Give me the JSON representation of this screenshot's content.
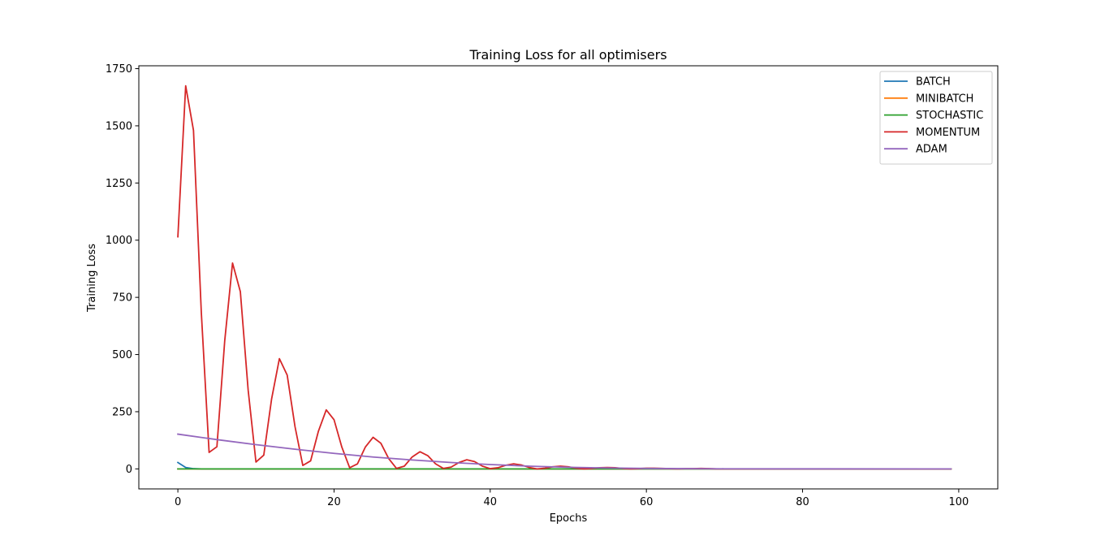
{
  "chart_data": {
    "type": "line",
    "title": "Training Loss for all optimisers",
    "xlabel": "Epochs",
    "ylabel": "Training Loss",
    "xlim": [
      -5,
      105
    ],
    "ylim": [
      -87.5,
      1762.5
    ],
    "xticks": [
      0,
      20,
      40,
      60,
      80,
      100
    ],
    "yticks": [
      0,
      250,
      500,
      750,
      1000,
      1250,
      1500,
      1750
    ],
    "grid": false,
    "legend_position": "top-right",
    "x_start": 0,
    "x_end": 99,
    "series": [
      {
        "name": "BATCH",
        "color": "#1f77b4",
        "points": [
          [
            0,
            28
          ],
          [
            1,
            6
          ],
          [
            2,
            1
          ],
          [
            3,
            0
          ],
          [
            99,
            0
          ]
        ]
      },
      {
        "name": "MINIBATCH",
        "color": "#ff7f0e",
        "points": [
          [
            0,
            0
          ],
          [
            99,
            0
          ]
        ]
      },
      {
        "name": "STOCHASTIC",
        "color": "#2ca02c",
        "points": [
          [
            0,
            0
          ],
          [
            99,
            0
          ]
        ]
      },
      {
        "name": "MOMENTUM",
        "color": "#d62728",
        "points": [
          [
            0,
            1015
          ],
          [
            1,
            1675
          ],
          [
            2,
            1480
          ],
          [
            3,
            685
          ],
          [
            4,
            72
          ],
          [
            5,
            97
          ],
          [
            6,
            560
          ],
          [
            7,
            900
          ],
          [
            8,
            775
          ],
          [
            9,
            345
          ],
          [
            10,
            30
          ],
          [
            11,
            60
          ],
          [
            12,
            305
          ],
          [
            13,
            482
          ],
          [
            14,
            410
          ],
          [
            15,
            185
          ],
          [
            16,
            15
          ],
          [
            17,
            35
          ],
          [
            18,
            165
          ],
          [
            19,
            258
          ],
          [
            20,
            215
          ],
          [
            21,
            95
          ],
          [
            22,
            5
          ],
          [
            23,
            22
          ],
          [
            24,
            95
          ],
          [
            25,
            138
          ],
          [
            26,
            112
          ],
          [
            27,
            45
          ],
          [
            28,
            2
          ],
          [
            29,
            12
          ],
          [
            30,
            52
          ],
          [
            31,
            75
          ],
          [
            32,
            58
          ],
          [
            33,
            22
          ],
          [
            34,
            2
          ],
          [
            35,
            8
          ],
          [
            36,
            28
          ],
          [
            37,
            40
          ],
          [
            38,
            32
          ],
          [
            39,
            12
          ],
          [
            40,
            1
          ],
          [
            41,
            5
          ],
          [
            42,
            16
          ],
          [
            43,
            22
          ],
          [
            44,
            17
          ],
          [
            45,
            6
          ],
          [
            46,
            0
          ],
          [
            47,
            3
          ],
          [
            48,
            9
          ],
          [
            49,
            12
          ],
          [
            50,
            9
          ],
          [
            51,
            3
          ],
          [
            52,
            0
          ],
          [
            53,
            2
          ],
          [
            54,
            5
          ],
          [
            55,
            6
          ],
          [
            56,
            5
          ],
          [
            57,
            2
          ],
          [
            58,
            0
          ],
          [
            59,
            1
          ],
          [
            60,
            3
          ],
          [
            61,
            3
          ],
          [
            62,
            2
          ],
          [
            63,
            1
          ],
          [
            64,
            0
          ],
          [
            65,
            1
          ],
          [
            66,
            1
          ],
          [
            67,
            2
          ],
          [
            68,
            1
          ],
          [
            69,
            0
          ],
          [
            70,
            0
          ],
          [
            99,
            0
          ]
        ]
      },
      {
        "name": "ADAM",
        "color": "#9467bd",
        "points": [
          [
            0,
            152
          ],
          [
            5,
            128
          ],
          [
            10,
            106
          ],
          [
            15,
            86
          ],
          [
            20,
            68
          ],
          [
            25,
            52
          ],
          [
            30,
            39
          ],
          [
            35,
            28
          ],
          [
            40,
            19
          ],
          [
            45,
            12
          ],
          [
            50,
            7
          ],
          [
            55,
            4
          ],
          [
            60,
            2
          ],
          [
            65,
            1
          ],
          [
            70,
            0.5
          ],
          [
            80,
            0.1
          ],
          [
            99,
            0
          ]
        ]
      }
    ]
  }
}
